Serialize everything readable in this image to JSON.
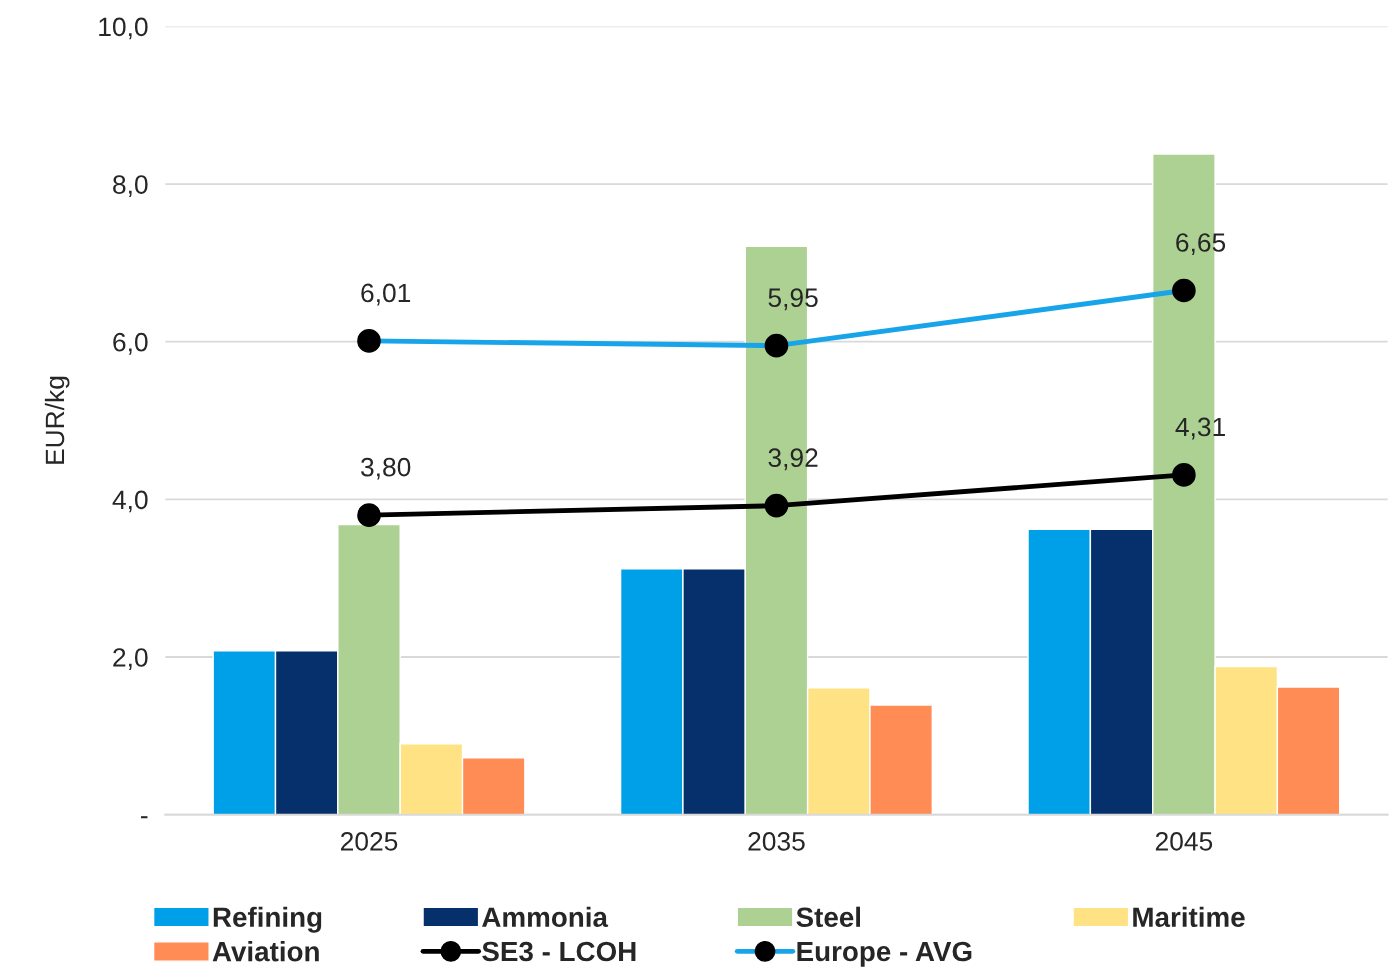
{
  "chart_data": {
    "type": "bar",
    "ylabel": "EUR/kg",
    "categories": [
      "2025",
      "2035",
      "2045"
    ],
    "series": [
      {
        "name": "Refining",
        "color": "#00a0e9",
        "values": [
          2.08,
          3.12,
          3.62
        ]
      },
      {
        "name": "Ammonia",
        "color": "#06306b",
        "values": [
          2.08,
          3.12,
          3.62
        ]
      },
      {
        "name": "Steel",
        "color": "#add193",
        "values": [
          3.68,
          7.21,
          8.38
        ]
      },
      {
        "name": "Maritime",
        "color": "#ffe283",
        "values": [
          0.9,
          1.61,
          1.88
        ]
      },
      {
        "name": "Aviation",
        "color": "#ff8c55",
        "values": [
          0.72,
          1.39,
          1.62
        ]
      },
      {
        "name": "SE3 - LCOH",
        "type": "line",
        "color": "#000000",
        "values": [
          3.8,
          3.92,
          4.31
        ],
        "value_labels": [
          "3,80",
          "3,92",
          "4,31"
        ]
      },
      {
        "name": "Europe - AVG",
        "type": "line",
        "color": "#18a4e8",
        "values": [
          6.01,
          5.95,
          6.65
        ],
        "value_labels": [
          "6,01",
          "5,95",
          "6,65"
        ]
      }
    ],
    "ylim": [
      0,
      10
    ],
    "yticks": [
      {
        "value": 0,
        "label": "-"
      },
      {
        "value": 2,
        "label": "2,0"
      },
      {
        "value": 4,
        "label": "4,0"
      },
      {
        "value": 6,
        "label": "6,0"
      },
      {
        "value": 8,
        "label": "8,0"
      },
      {
        "value": 10,
        "label": "10,0"
      }
    ],
    "grid": "y",
    "legend": "bottom",
    "marker": "circle",
    "line_style": "solid"
  }
}
